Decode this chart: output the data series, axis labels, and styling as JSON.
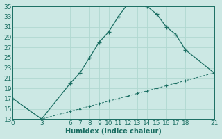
{
  "xlabel": "Humidex (Indice chaleur)",
  "bg_color": "#cce8e4",
  "line_color": "#1a6e62",
  "grid_color_major": "#b0d8d0",
  "grid_color_minor": "#d0eeea",
  "upper_x": [
    0,
    3,
    6,
    7,
    8,
    9,
    10,
    11,
    12,
    13,
    14,
    15,
    16,
    17,
    18,
    21
  ],
  "upper_y": [
    17,
    13,
    20,
    22,
    25,
    28,
    30,
    33,
    35.5,
    35.5,
    35,
    33.5,
    31,
    29.5,
    26.5,
    22
  ],
  "lower_x": [
    0,
    3,
    6,
    7,
    8,
    9,
    10,
    11,
    12,
    13,
    14,
    15,
    16,
    17,
    18,
    21
  ],
  "lower_y": [
    17,
    13,
    14.5,
    15.0,
    15.5,
    16.0,
    16.5,
    17.0,
    17.5,
    18.0,
    18.5,
    19.0,
    19.5,
    20.0,
    20.5,
    22
  ],
  "xlim": [
    0,
    21
  ],
  "ylim": [
    13,
    35
  ],
  "xticks": [
    0,
    3,
    6,
    7,
    8,
    9,
    10,
    11,
    12,
    13,
    14,
    15,
    16,
    17,
    18,
    21
  ],
  "yticks": [
    13,
    15,
    17,
    19,
    21,
    23,
    25,
    27,
    29,
    31,
    33,
    35
  ],
  "tick_fontsize": 6.5,
  "xlabel_fontsize": 7.0
}
